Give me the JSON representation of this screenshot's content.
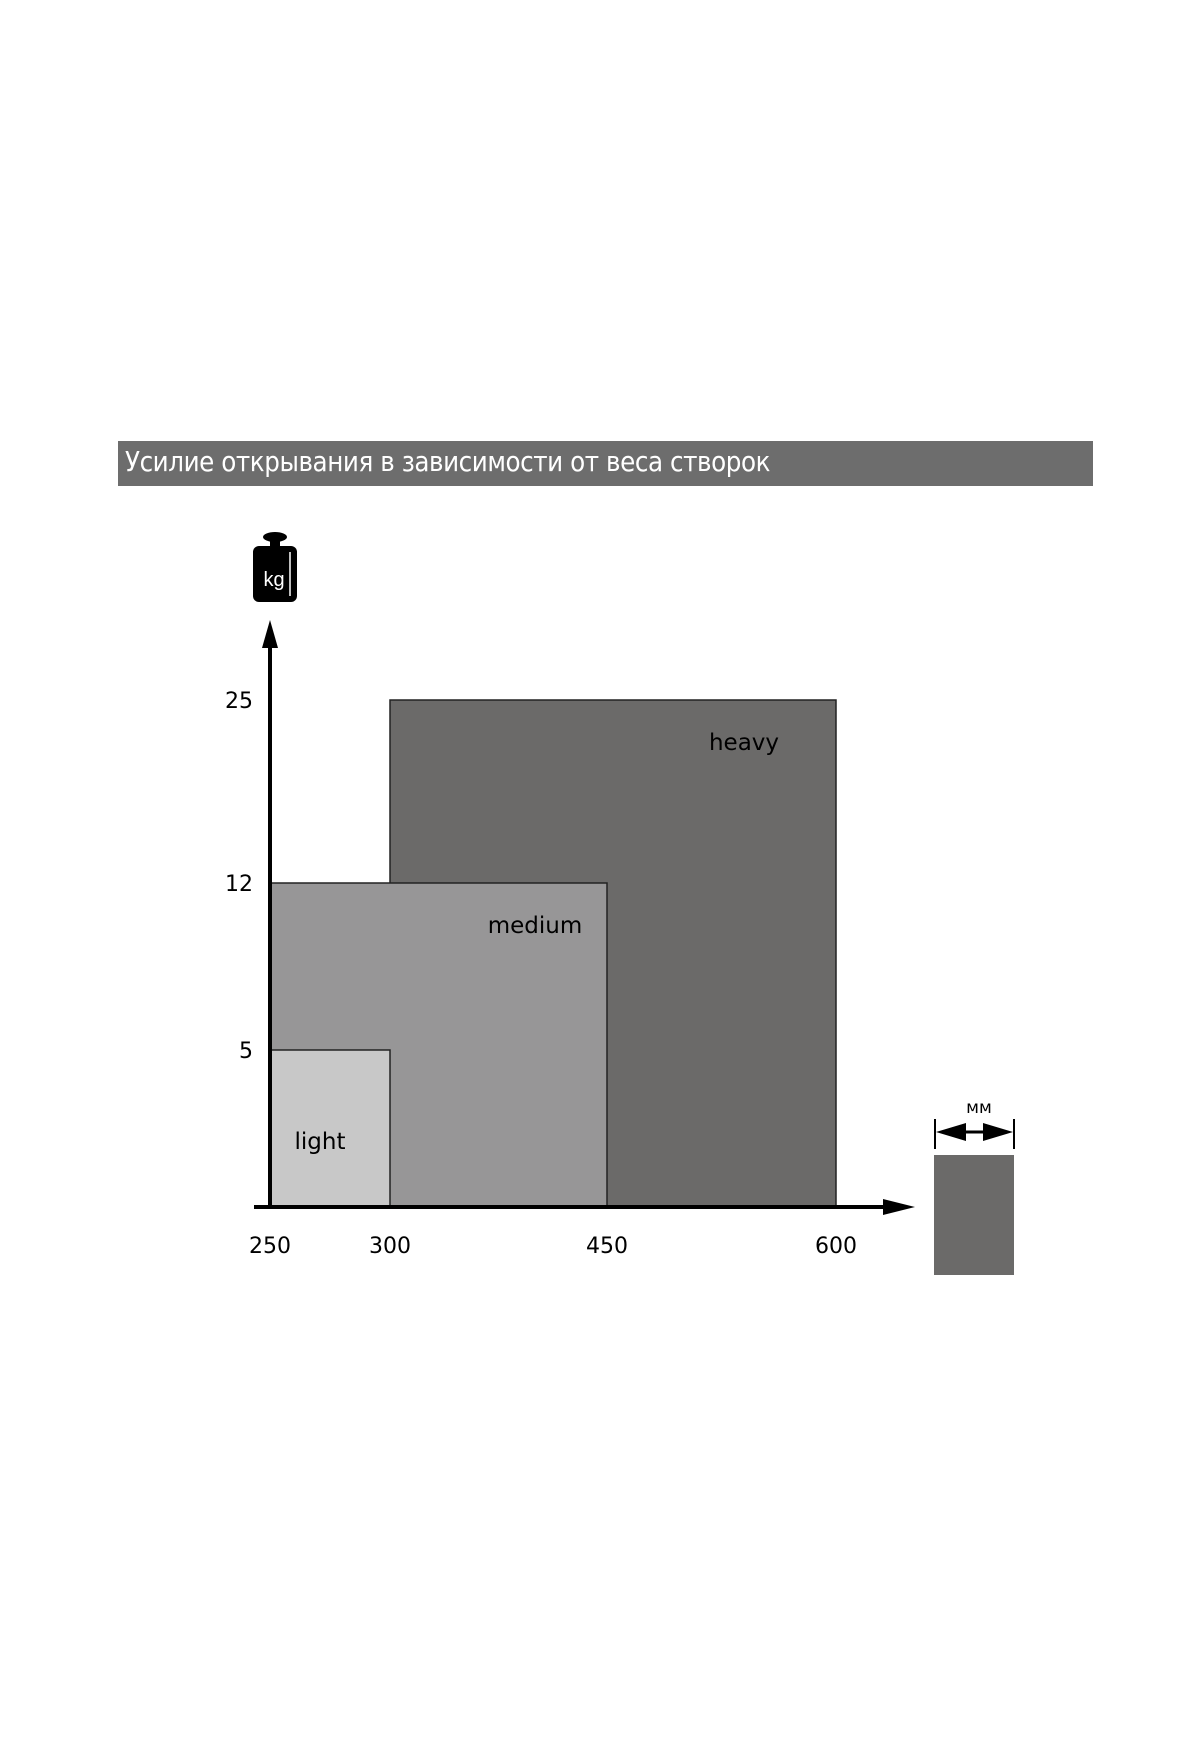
{
  "chart_data": {
    "type": "bar",
    "title": "Усилие открывания в зависимости от веса створок",
    "xlabel": "мм",
    "ylabel": "kg",
    "x_ticks": [
      250,
      300,
      450,
      600
    ],
    "y_ticks": [
      5,
      12,
      25
    ],
    "series": [
      {
        "name": "heavy",
        "x_range": [
          300,
          600
        ],
        "y_max": 25,
        "color": "#6b6a69"
      },
      {
        "name": "medium",
        "x_range": [
          250,
          450
        ],
        "y_max": 12,
        "color": "#979697"
      },
      {
        "name": "light",
        "x_range": [
          250,
          300
        ],
        "y_max": 5,
        "color": "#c8c8c8"
      }
    ],
    "grid": false,
    "legend": "none"
  },
  "icons": {
    "weight": "kg-weight-icon",
    "width": "width-arrows-icon"
  },
  "title_bar_color": "#6d6d6d"
}
